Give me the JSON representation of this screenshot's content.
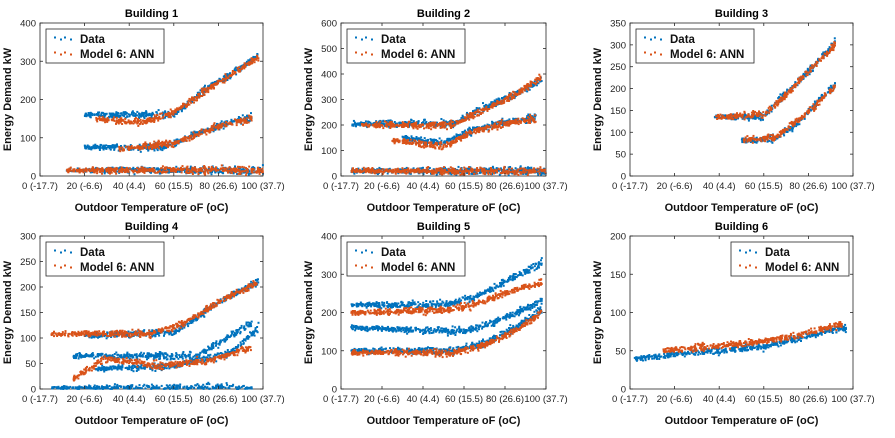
{
  "colors": {
    "data": "#0072BD",
    "model": "#D95319"
  },
  "legend": {
    "data_label": "Data",
    "model_label": "Model 6: ANN"
  },
  "x_tick_labels": [
    "0 (-17.7)",
    "20 (-6.6)",
    "40 (4.4)",
    "60 (15.5)",
    "80 (26.6)",
    "100 (37.7)"
  ],
  "chart_data": [
    {
      "type": "scatter",
      "title": "Building 1",
      "xlabel": "Outdoor Temperature oF (oC)",
      "ylabel": "Energy Demand kW",
      "xlim": [
        0,
        100
      ],
      "ylim": [
        0,
        400
      ],
      "yticks": [
        0,
        100,
        200,
        300,
        400
      ],
      "legend": "top-left",
      "series": [
        {
          "name": "Data",
          "trend_points": [
            [
              12,
              15
            ],
            [
              100,
              15
            ],
            [
              20,
              75
            ],
            [
              55,
              75
            ],
            [
              70,
              110
            ],
            [
              85,
              140
            ],
            [
              95,
              155
            ],
            [
              20,
              160
            ],
            [
              60,
              160
            ],
            [
              75,
              230
            ],
            [
              90,
              280
            ],
            [
              98,
              320
            ]
          ]
        },
        {
          "name": "Model 6: ANN",
          "trend_points": [
            [
              12,
              15
            ],
            [
              100,
              15
            ],
            [
              25,
              150
            ],
            [
              45,
              140
            ],
            [
              60,
              165
            ],
            [
              75,
              225
            ],
            [
              90,
              280
            ],
            [
              98,
              310
            ],
            [
              35,
              70
            ],
            [
              60,
              85
            ],
            [
              80,
              130
            ],
            [
              95,
              150
            ]
          ]
        }
      ]
    },
    {
      "type": "scatter",
      "title": "Building 2",
      "xlabel": "Outdoor Temperature oF (oC)",
      "ylabel": "Energy Demand kW",
      "xlim": [
        0,
        100
      ],
      "ylim": [
        0,
        600
      ],
      "yticks": [
        0,
        100,
        200,
        300,
        400,
        500,
        600
      ],
      "legend": "top-left",
      "series": [
        {
          "name": "Data",
          "trend_points": [
            [
              5,
              20
            ],
            [
              100,
              20
            ],
            [
              5,
              205
            ],
            [
              55,
              205
            ],
            [
              70,
              270
            ],
            [
              85,
              320
            ],
            [
              98,
              380
            ],
            [
              30,
              150
            ],
            [
              50,
              130
            ],
            [
              65,
              180
            ],
            [
              80,
              210
            ],
            [
              95,
              230
            ]
          ]
        },
        {
          "name": "Model 6: ANN",
          "trend_points": [
            [
              5,
              20
            ],
            [
              100,
              20
            ],
            [
              10,
              200
            ],
            [
              55,
              200
            ],
            [
              70,
              260
            ],
            [
              85,
              320
            ],
            [
              98,
              390
            ],
            [
              25,
              140
            ],
            [
              50,
              115
            ],
            [
              65,
              175
            ],
            [
              80,
              205
            ],
            [
              95,
              225
            ]
          ]
        }
      ]
    },
    {
      "type": "scatter",
      "title": "Building 3",
      "xlabel": "Outdoor Temperature oF (oC)",
      "ylabel": "Energy Demand kW",
      "xlim": [
        0,
        100
      ],
      "ylim": [
        0,
        350
      ],
      "yticks": [
        0,
        50,
        100,
        150,
        200,
        250,
        300,
        350
      ],
      "legend": "top-left",
      "series": [
        {
          "name": "Data",
          "trend_points": [
            [
              38,
              135
            ],
            [
              60,
              135
            ],
            [
              70,
              190
            ],
            [
              82,
              250
            ],
            [
              92,
              305
            ],
            [
              50,
              80
            ],
            [
              65,
              85
            ],
            [
              75,
              120
            ],
            [
              85,
              175
            ],
            [
              92,
              210
            ]
          ]
        },
        {
          "name": "Model 6: ANN",
          "trend_points": [
            [
              38,
              135
            ],
            [
              60,
              140
            ],
            [
              70,
              185
            ],
            [
              82,
              250
            ],
            [
              92,
              300
            ],
            [
              50,
              82
            ],
            [
              65,
              88
            ],
            [
              75,
              125
            ],
            [
              85,
              170
            ],
            [
              92,
              205
            ]
          ]
        }
      ]
    },
    {
      "type": "scatter",
      "title": "Building 4",
      "xlabel": "Outdoor Temperature oF (oC)",
      "ylabel": "Energy Demand kW",
      "xlim": [
        0,
        100
      ],
      "ylim": [
        0,
        300
      ],
      "yticks": [
        0,
        50,
        100,
        150,
        200,
        250,
        300
      ],
      "legend": "top-left",
      "series": [
        {
          "name": "Data",
          "trend_points": [
            [
              5,
              2
            ],
            [
              95,
              2
            ],
            [
              15,
              65
            ],
            [
              70,
              65
            ],
            [
              80,
              90
            ],
            [
              95,
              130
            ],
            [
              25,
              40
            ],
            [
              60,
              45
            ],
            [
              85,
              70
            ],
            [
              98,
              120
            ],
            [
              20,
              105
            ],
            [
              60,
              110
            ],
            [
              80,
              170
            ],
            [
              98,
              210
            ]
          ]
        },
        {
          "name": "Model 6: ANN",
          "trend_points": [
            [
              5,
              108
            ],
            [
              50,
              108
            ],
            [
              65,
              130
            ],
            [
              80,
              170
            ],
            [
              98,
              210
            ],
            [
              15,
              20
            ],
            [
              30,
              60
            ],
            [
              55,
              45
            ],
            [
              75,
              55
            ],
            [
              95,
              80
            ]
          ]
        }
      ]
    },
    {
      "type": "scatter",
      "title": "Building 5",
      "xlabel": "Outdoor Temperature oF (oC)",
      "ylabel": "Energy Demand kW",
      "xlim": [
        0,
        100
      ],
      "ylim": [
        0,
        400
      ],
      "yticks": [
        0,
        100,
        200,
        300,
        400
      ],
      "legend": "top-left",
      "series": [
        {
          "name": "Data",
          "trend_points": [
            [
              5,
              220
            ],
            [
              50,
              220
            ],
            [
              65,
              240
            ],
            [
              80,
              280
            ],
            [
              98,
              330
            ],
            [
              5,
              160
            ],
            [
              60,
              150
            ],
            [
              75,
              175
            ],
            [
              98,
              230
            ],
            [
              5,
              100
            ],
            [
              55,
              100
            ],
            [
              70,
              120
            ],
            [
              85,
              160
            ],
            [
              98,
              210
            ]
          ]
        },
        {
          "name": "Model 6: ANN",
          "trend_points": [
            [
              5,
              200
            ],
            [
              50,
              205
            ],
            [
              65,
              220
            ],
            [
              80,
              250
            ],
            [
              98,
              280
            ],
            [
              5,
              95
            ],
            [
              55,
              95
            ],
            [
              70,
              115
            ],
            [
              85,
              150
            ],
            [
              98,
              200
            ]
          ]
        }
      ]
    },
    {
      "type": "scatter",
      "title": "Building 6",
      "xlabel": "Outdoor Temperature oF (oC)",
      "ylabel": "Energy Demand kW",
      "xlim": [
        0,
        100
      ],
      "ylim": [
        0,
        200
      ],
      "yticks": [
        0,
        50,
        100,
        150,
        200
      ],
      "legend": "top-right",
      "series": [
        {
          "name": "Data",
          "trend_points": [
            [
              2,
              40
            ],
            [
              20,
              45
            ],
            [
              40,
              50
            ],
            [
              60,
              55
            ],
            [
              80,
              70
            ],
            [
              97,
              80
            ]
          ]
        },
        {
          "name": "Model 6: ANN",
          "trend_points": [
            [
              15,
              50
            ],
            [
              35,
              55
            ],
            [
              55,
              60
            ],
            [
              75,
              70
            ],
            [
              95,
              85
            ]
          ]
        }
      ]
    }
  ]
}
